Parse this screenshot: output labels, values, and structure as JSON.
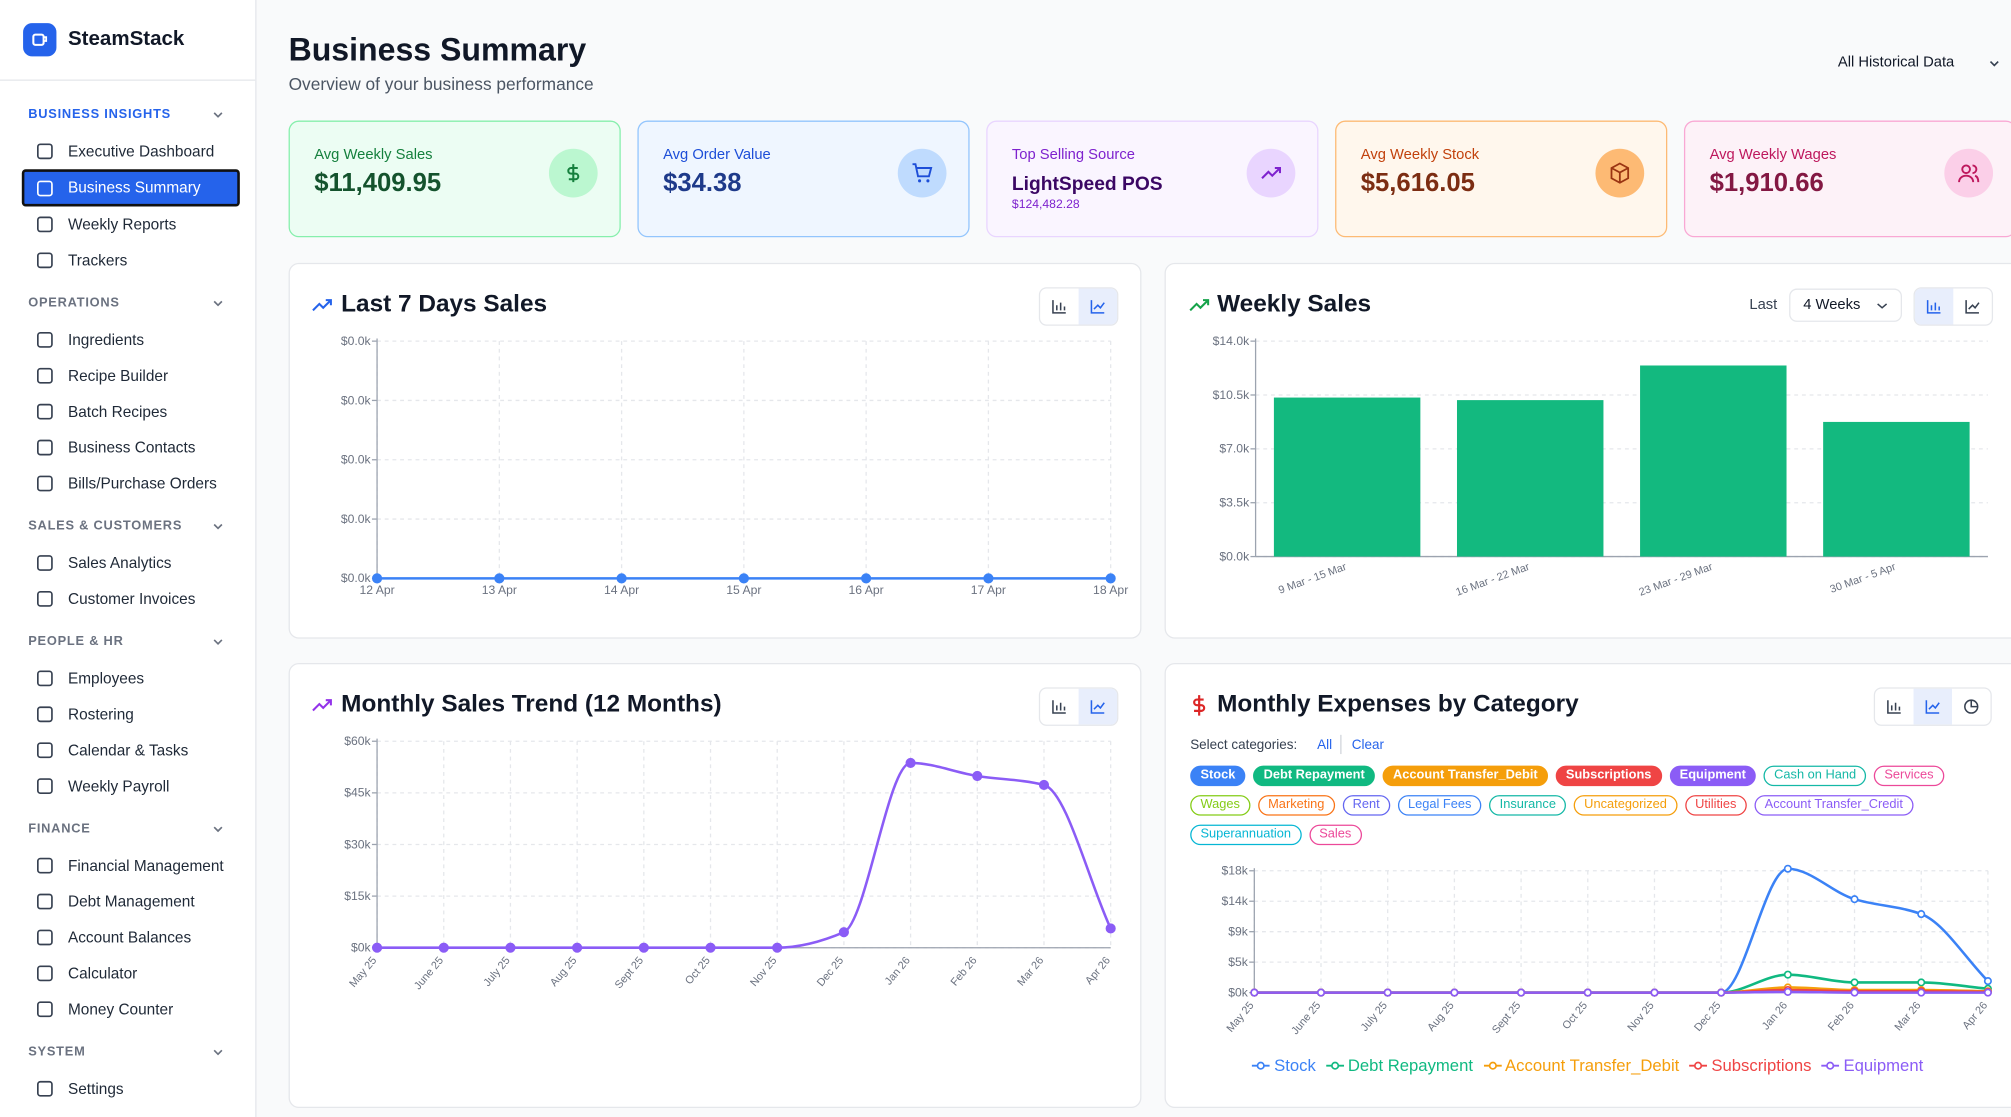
{
  "sidebar": {
    "brand": "SteamStack",
    "active_section": 0,
    "active_item": 1,
    "sections": [
      {
        "title": "BUSINESS INSIGHTS",
        "items": [
          "Executive Dashboard",
          "Business Summary",
          "Weekly Reports",
          "Trackers"
        ]
      },
      {
        "title": "OPERATIONS",
        "items": [
          "Ingredients",
          "Recipe Builder",
          "Batch Recipes",
          "Business Contacts",
          "Bills/Purchase Orders"
        ]
      },
      {
        "title": "SALES & CUSTOMERS",
        "items": [
          "Sales Analytics",
          "Customer Invoices"
        ]
      },
      {
        "title": "PEOPLE & HR",
        "items": [
          "Employees",
          "Rostering",
          "Calendar & Tasks",
          "Weekly Payroll"
        ]
      },
      {
        "title": "FINANCE",
        "items": [
          "Financial Management",
          "Debt Management",
          "Account Balances",
          "Calculator",
          "Money Counter"
        ]
      },
      {
        "title": "SYSTEM",
        "items": [
          "Settings"
        ]
      }
    ]
  },
  "header": {
    "title": "Business Summary",
    "subtitle": "Overview of your business performance",
    "filter": "All Historical Data"
  },
  "cards": [
    {
      "label": "Avg Weekly Sales",
      "value": "$11,409.95"
    },
    {
      "label": "Avg Order Value",
      "value": "$34.38"
    },
    {
      "label": "Top Selling Source",
      "value": "LightSpeed POS",
      "sub": "$124,482.28"
    },
    {
      "label": "Avg Weekly Stock",
      "value": "$5,616.05"
    },
    {
      "label": "Avg Weekly Wages",
      "value": "$1,910.66"
    }
  ],
  "charts": [
    {
      "type": "line",
      "title": "Last 7 Days Sales",
      "categories": [
        "12 Apr",
        "13 Apr",
        "14 Apr",
        "15 Apr",
        "16 Apr",
        "17 Apr",
        "18 Apr"
      ],
      "values": [
        0,
        0,
        0,
        0,
        0,
        0,
        0
      ],
      "color": "#3b82f6",
      "ylim": [
        0,
        1
      ],
      "yticks": [
        {
          "value": 0,
          "label": "$0.0k"
        },
        {
          "value": 0.25,
          "label": "$0.0k"
        },
        {
          "value": 0.5,
          "label": "$0.0k"
        },
        {
          "value": 0.75,
          "label": "$0.0k"
        },
        {
          "value": 1,
          "label": "$0.0k"
        }
      ],
      "grid": true
    },
    {
      "type": "bar",
      "title": "Weekly Sales",
      "controls": {
        "label": "Last",
        "period": "4 Weeks"
      },
      "categories": [
        "9 Mar - 15 Mar",
        "16 Mar - 22 Mar",
        "23 Mar - 29 Mar",
        "30 Mar - 5 Apr"
      ],
      "values": [
        10333,
        10167,
        12417,
        8750
      ],
      "color": "#13b97f",
      "ylim": [
        0,
        14000
      ],
      "yticks": [
        {
          "value": 0,
          "label": "$0.0k"
        },
        {
          "value": 3500,
          "label": "$3.5k"
        },
        {
          "value": 7000,
          "label": "$7.0k"
        },
        {
          "value": 10500,
          "label": "$10.5k"
        },
        {
          "value": 14000,
          "label": "$14.0k"
        }
      ],
      "grid": true
    },
    {
      "type": "line",
      "title": "Monthly Sales Trend (12 Months)",
      "categories": [
        "May 25",
        "June 25",
        "July 25",
        "Aug 25",
        "Sept 25",
        "Oct 25",
        "Nov 25",
        "Dec 25",
        "Jan 26",
        "Feb 26",
        "Mar 26",
        "Apr 26"
      ],
      "values": [
        0,
        0,
        0,
        0,
        0,
        0,
        0,
        4500,
        53700,
        49900,
        47300,
        5600
      ],
      "color": "#8b5cf6",
      "ylim": [
        0,
        60000
      ],
      "yticks": [
        {
          "value": 0,
          "label": "$0k"
        },
        {
          "value": 15000,
          "label": "$15k"
        },
        {
          "value": 30000,
          "label": "$30k"
        },
        {
          "value": 45000,
          "label": "$45k"
        },
        {
          "value": 60000,
          "label": "$60k"
        }
      ],
      "grid": true
    },
    {
      "type": "line",
      "title": "Monthly Expenses by Category",
      "filter": {
        "label": "Select categories:",
        "all": "All",
        "clear": "Clear",
        "chips": [
          {
            "name": "Stock",
            "color": "#3b82f6",
            "selected": true
          },
          {
            "name": "Debt Repayment",
            "color": "#10b981",
            "selected": true
          },
          {
            "name": "Account Transfer_Debit",
            "color": "#f59e0b",
            "selected": true
          },
          {
            "name": "Subscriptions",
            "color": "#ef4444",
            "selected": true
          },
          {
            "name": "Equipment",
            "color": "#8b5cf6",
            "selected": true
          },
          {
            "name": "Cash on Hand",
            "color": "#14b8a6",
            "selected": false
          },
          {
            "name": "Services",
            "color": "#ec4899",
            "selected": false
          },
          {
            "name": "Wages",
            "color": "#84cc16",
            "selected": false
          },
          {
            "name": "Marketing",
            "color": "#f97316",
            "selected": false
          },
          {
            "name": "Rent",
            "color": "#6366f1",
            "selected": false
          },
          {
            "name": "Legal Fees",
            "color": "#3b82f6",
            "selected": false
          },
          {
            "name": "Insurance",
            "color": "#14b8a6",
            "selected": false
          },
          {
            "name": "Uncategorized",
            "color": "#f59e0b",
            "selected": false
          },
          {
            "name": "Utilities",
            "color": "#ef4444",
            "selected": false
          },
          {
            "name": "Account Transfer_Credit",
            "color": "#8b5cf6",
            "selected": false
          },
          {
            "name": "Superannuation",
            "color": "#06b6d4",
            "selected": false
          },
          {
            "name": "Sales",
            "color": "#ec4899",
            "selected": false
          }
        ]
      },
      "categories": [
        "May 25",
        "June 25",
        "July 25",
        "Aug 25",
        "Sept 25",
        "Oct 25",
        "Nov 25",
        "Dec 25",
        "Jan 26",
        "Feb 26",
        "Mar 26",
        "Apr 26"
      ],
      "series": [
        {
          "name": "Stock",
          "color": "#3b82f6",
          "values": [
            0,
            0,
            0,
            0,
            0,
            0,
            0,
            0,
            18300,
            13800,
            11600,
            1700
          ]
        },
        {
          "name": "Debt Repayment",
          "color": "#10b981",
          "values": [
            0,
            0,
            0,
            0,
            0,
            0,
            0,
            0,
            2650,
            1500,
            1500,
            570
          ]
        },
        {
          "name": "Account Transfer_Debit",
          "color": "#f59e0b",
          "values": [
            0,
            0,
            0,
            0,
            0,
            0,
            0,
            0,
            760,
            380,
            380,
            190
          ]
        },
        {
          "name": "Subscriptions",
          "color": "#ef4444",
          "values": [
            0,
            0,
            0,
            0,
            0,
            0,
            0,
            0,
            380,
            190,
            190,
            100
          ]
        },
        {
          "name": "Equipment",
          "color": "#8b5cf6",
          "values": [
            0,
            0,
            0,
            0,
            0,
            0,
            0,
            0,
            100,
            0,
            0,
            0
          ]
        }
      ],
      "ylim": [
        0,
        18000
      ],
      "yticks": [
        {
          "value": 0,
          "label": "$0k"
        },
        {
          "value": 4500,
          "label": "$5k"
        },
        {
          "value": 9000,
          "label": "$9k"
        },
        {
          "value": 13500,
          "label": "$14k"
        },
        {
          "value": 18000,
          "label": "$18k"
        }
      ],
      "grid": true,
      "legend": "bottom"
    }
  ]
}
